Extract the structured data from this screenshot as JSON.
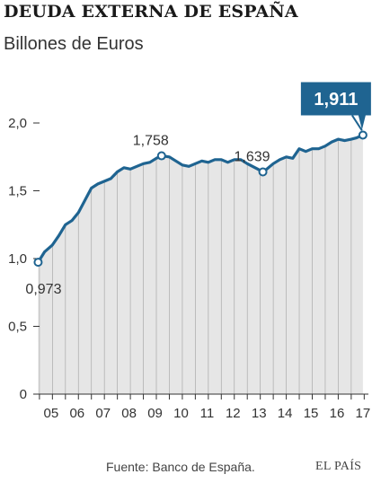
{
  "header": {
    "title": "DEUDA EXTERNA DE ESPAÑA",
    "subtitle": "Billones de Euros"
  },
  "footer": {
    "source": "Fuente: Banco de España.",
    "brand": "EL PAÍS"
  },
  "colors": {
    "line": "#1f6491",
    "area": "#e6e6e6",
    "highlight_box": "#1f6491",
    "grid": "#aaaaaa",
    "axis": "#333333"
  },
  "chart_data": {
    "type": "area",
    "title": "DEUDA EXTERNA DE ESPAÑA",
    "subtitle": "Billones de Euros",
    "xlabel": "",
    "ylabel": "",
    "ylim": [
      0,
      2.0
    ],
    "xlim": [
      2004.9,
      2017.8
    ],
    "grid": "vertical",
    "y_ticks": [
      {
        "value": 0,
        "label": "0"
      },
      {
        "value": 0.5,
        "label": "0,5"
      },
      {
        "value": 1.0,
        "label": "1,0"
      },
      {
        "value": 1.5,
        "label": "1,5"
      },
      {
        "value": 2.0,
        "label": "2,0"
      }
    ],
    "x_ticks": [
      {
        "value": 2005,
        "label": "05"
      },
      {
        "value": 2006,
        "label": "06"
      },
      {
        "value": 2007,
        "label": "07"
      },
      {
        "value": 2008,
        "label": "08"
      },
      {
        "value": 2009,
        "label": "09"
      },
      {
        "value": 2010,
        "label": "10"
      },
      {
        "value": 2011,
        "label": "11"
      },
      {
        "value": 2012,
        "label": "12"
      },
      {
        "value": 2013,
        "label": "13"
      },
      {
        "value": 2014,
        "label": "14"
      },
      {
        "value": 2015,
        "label": "15"
      },
      {
        "value": 2016,
        "label": "16"
      },
      {
        "value": 2017,
        "label": "17"
      }
    ],
    "series": [
      {
        "x": [
          2004.95,
          2005.2,
          2005.5,
          2005.75,
          2006.0,
          2006.25,
          2006.5,
          2006.75,
          2007.0,
          2007.25,
          2007.5,
          2007.75,
          2008.0,
          2008.25,
          2008.5,
          2008.75,
          2009.0,
          2009.25,
          2009.5,
          2009.7,
          2010.0,
          2010.25,
          2010.5,
          2010.75,
          2011.0,
          2011.25,
          2011.5,
          2011.75,
          2012.0,
          2012.25,
          2012.5,
          2012.75,
          2013.0,
          2013.2,
          2013.4,
          2013.6,
          2013.75,
          2014.0,
          2014.25,
          2014.5,
          2014.75,
          2015.0,
          2015.25,
          2015.5,
          2015.75,
          2016.0,
          2016.25,
          2016.5,
          2016.75,
          2017.0,
          2017.2,
          2017.45
        ],
        "values": [
          0.973,
          1.05,
          1.1,
          1.17,
          1.25,
          1.28,
          1.34,
          1.43,
          1.52,
          1.55,
          1.57,
          1.59,
          1.64,
          1.67,
          1.66,
          1.68,
          1.7,
          1.71,
          1.74,
          1.758,
          1.75,
          1.72,
          1.69,
          1.68,
          1.7,
          1.72,
          1.71,
          1.73,
          1.73,
          1.71,
          1.73,
          1.73,
          1.7,
          1.68,
          1.66,
          1.639,
          1.66,
          1.7,
          1.73,
          1.75,
          1.74,
          1.81,
          1.79,
          1.81,
          1.81,
          1.83,
          1.86,
          1.88,
          1.87,
          1.88,
          1.89,
          1.911
        ]
      }
    ],
    "annotations": [
      {
        "x": 2004.95,
        "value": 0.973,
        "label": "0,973",
        "position": "below-right"
      },
      {
        "x": 2009.7,
        "value": 1.758,
        "label": "1,758",
        "position": "above"
      },
      {
        "x": 2013.6,
        "value": 1.639,
        "label": "1,639",
        "position": "above"
      },
      {
        "x": 2017.45,
        "value": 1.911,
        "label": "1,911",
        "position": "highlight-box"
      }
    ]
  }
}
